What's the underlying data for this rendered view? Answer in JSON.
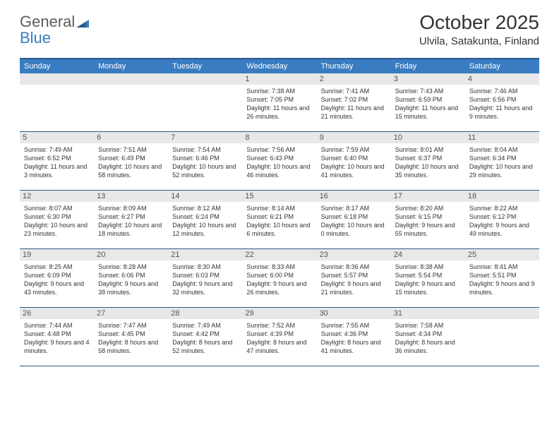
{
  "brand": {
    "part1": "General",
    "part2": "Blue"
  },
  "title": "October 2025",
  "location": "Ulvila, Satakunta, Finland",
  "colors": {
    "header_bg": "#3a7cc2",
    "header_border": "#2b5a8c",
    "daynum_bg": "#e8e8e8",
    "text": "#333333"
  },
  "day_names": [
    "Sunday",
    "Monday",
    "Tuesday",
    "Wednesday",
    "Thursday",
    "Friday",
    "Saturday"
  ],
  "weeks": [
    [
      null,
      null,
      null,
      {
        "num": "1",
        "sunrise": "7:38 AM",
        "sunset": "7:05 PM",
        "daylight": "11 hours and 26 minutes."
      },
      {
        "num": "2",
        "sunrise": "7:41 AM",
        "sunset": "7:02 PM",
        "daylight": "11 hours and 21 minutes."
      },
      {
        "num": "3",
        "sunrise": "7:43 AM",
        "sunset": "6:59 PM",
        "daylight": "11 hours and 15 minutes."
      },
      {
        "num": "4",
        "sunrise": "7:46 AM",
        "sunset": "6:56 PM",
        "daylight": "11 hours and 9 minutes."
      }
    ],
    [
      {
        "num": "5",
        "sunrise": "7:49 AM",
        "sunset": "6:52 PM",
        "daylight": "11 hours and 3 minutes."
      },
      {
        "num": "6",
        "sunrise": "7:51 AM",
        "sunset": "6:49 PM",
        "daylight": "10 hours and 58 minutes."
      },
      {
        "num": "7",
        "sunrise": "7:54 AM",
        "sunset": "6:46 PM",
        "daylight": "10 hours and 52 minutes."
      },
      {
        "num": "8",
        "sunrise": "7:56 AM",
        "sunset": "6:43 PM",
        "daylight": "10 hours and 46 minutes."
      },
      {
        "num": "9",
        "sunrise": "7:59 AM",
        "sunset": "6:40 PM",
        "daylight": "10 hours and 41 minutes."
      },
      {
        "num": "10",
        "sunrise": "8:01 AM",
        "sunset": "6:37 PM",
        "daylight": "10 hours and 35 minutes."
      },
      {
        "num": "11",
        "sunrise": "8:04 AM",
        "sunset": "6:34 PM",
        "daylight": "10 hours and 29 minutes."
      }
    ],
    [
      {
        "num": "12",
        "sunrise": "8:07 AM",
        "sunset": "6:30 PM",
        "daylight": "10 hours and 23 minutes."
      },
      {
        "num": "13",
        "sunrise": "8:09 AM",
        "sunset": "6:27 PM",
        "daylight": "10 hours and 18 minutes."
      },
      {
        "num": "14",
        "sunrise": "8:12 AM",
        "sunset": "6:24 PM",
        "daylight": "10 hours and 12 minutes."
      },
      {
        "num": "15",
        "sunrise": "8:14 AM",
        "sunset": "6:21 PM",
        "daylight": "10 hours and 6 minutes."
      },
      {
        "num": "16",
        "sunrise": "8:17 AM",
        "sunset": "6:18 PM",
        "daylight": "10 hours and 0 minutes."
      },
      {
        "num": "17",
        "sunrise": "8:20 AM",
        "sunset": "6:15 PM",
        "daylight": "9 hours and 55 minutes."
      },
      {
        "num": "18",
        "sunrise": "8:22 AM",
        "sunset": "6:12 PM",
        "daylight": "9 hours and 49 minutes."
      }
    ],
    [
      {
        "num": "19",
        "sunrise": "8:25 AM",
        "sunset": "6:09 PM",
        "daylight": "9 hours and 43 minutes."
      },
      {
        "num": "20",
        "sunrise": "8:28 AM",
        "sunset": "6:06 PM",
        "daylight": "9 hours and 38 minutes."
      },
      {
        "num": "21",
        "sunrise": "8:30 AM",
        "sunset": "6:03 PM",
        "daylight": "9 hours and 32 minutes."
      },
      {
        "num": "22",
        "sunrise": "8:33 AM",
        "sunset": "6:00 PM",
        "daylight": "9 hours and 26 minutes."
      },
      {
        "num": "23",
        "sunrise": "8:36 AM",
        "sunset": "5:57 PM",
        "daylight": "9 hours and 21 minutes."
      },
      {
        "num": "24",
        "sunrise": "8:38 AM",
        "sunset": "5:54 PM",
        "daylight": "9 hours and 15 minutes."
      },
      {
        "num": "25",
        "sunrise": "8:41 AM",
        "sunset": "5:51 PM",
        "daylight": "9 hours and 9 minutes."
      }
    ],
    [
      {
        "num": "26",
        "sunrise": "7:44 AM",
        "sunset": "4:48 PM",
        "daylight": "9 hours and 4 minutes."
      },
      {
        "num": "27",
        "sunrise": "7:47 AM",
        "sunset": "4:45 PM",
        "daylight": "8 hours and 58 minutes."
      },
      {
        "num": "28",
        "sunrise": "7:49 AM",
        "sunset": "4:42 PM",
        "daylight": "8 hours and 52 minutes."
      },
      {
        "num": "29",
        "sunrise": "7:52 AM",
        "sunset": "4:39 PM",
        "daylight": "8 hours and 47 minutes."
      },
      {
        "num": "30",
        "sunrise": "7:55 AM",
        "sunset": "4:36 PM",
        "daylight": "8 hours and 41 minutes."
      },
      {
        "num": "31",
        "sunrise": "7:58 AM",
        "sunset": "4:34 PM",
        "daylight": "8 hours and 36 minutes."
      },
      null
    ]
  ],
  "labels": {
    "sunrise": "Sunrise:",
    "sunset": "Sunset:",
    "daylight": "Daylight:"
  }
}
